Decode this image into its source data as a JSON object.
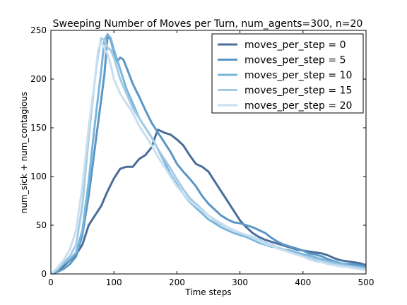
{
  "chart_data": {
    "type": "line",
    "title": "Sweeping Number of Moves per Turn, num_agents=300, n=20",
    "xlabel": "Time steps",
    "ylabel": "num_sick + num_contagious",
    "xlim": [
      0,
      500
    ],
    "ylim": [
      0,
      250
    ],
    "x_ticks": [
      "0",
      "100",
      "200",
      "300",
      "400",
      "500"
    ],
    "y_ticks": [
      "0",
      "50",
      "100",
      "150",
      "200",
      "250"
    ],
    "grid": false,
    "legend_position": "top-right",
    "series": [
      {
        "name": "moves_per_step = 0",
        "color": "#4a6d99",
        "points": [
          [
            0,
            0
          ],
          [
            10,
            3
          ],
          [
            20,
            8
          ],
          [
            30,
            14
          ],
          [
            40,
            20
          ],
          [
            50,
            30
          ],
          [
            60,
            50
          ],
          [
            70,
            60
          ],
          [
            80,
            70
          ],
          [
            90,
            85
          ],
          [
            100,
            98
          ],
          [
            110,
            108
          ],
          [
            120,
            110
          ],
          [
            130,
            110
          ],
          [
            140,
            118
          ],
          [
            150,
            122
          ],
          [
            160,
            130
          ],
          [
            165,
            140
          ],
          [
            170,
            148
          ],
          [
            180,
            145
          ],
          [
            190,
            143
          ],
          [
            200,
            138
          ],
          [
            210,
            132
          ],
          [
            220,
            122
          ],
          [
            230,
            113
          ],
          [
            240,
            110
          ],
          [
            250,
            105
          ],
          [
            260,
            95
          ],
          [
            270,
            85
          ],
          [
            280,
            75
          ],
          [
            290,
            65
          ],
          [
            300,
            55
          ],
          [
            310,
            48
          ],
          [
            320,
            42
          ],
          [
            330,
            38
          ],
          [
            340,
            35
          ],
          [
            350,
            33
          ],
          [
            360,
            31
          ],
          [
            370,
            29
          ],
          [
            380,
            27
          ],
          [
            390,
            25
          ],
          [
            400,
            24
          ],
          [
            410,
            23
          ],
          [
            420,
            22
          ],
          [
            430,
            21
          ],
          [
            440,
            19
          ],
          [
            450,
            16
          ],
          [
            460,
            14
          ],
          [
            470,
            13
          ],
          [
            480,
            12
          ],
          [
            490,
            11
          ],
          [
            500,
            9
          ]
        ]
      },
      {
        "name": "moves_per_step = 5",
        "color": "#5b96c6",
        "points": [
          [
            0,
            0
          ],
          [
            10,
            2
          ],
          [
            20,
            5
          ],
          [
            30,
            10
          ],
          [
            40,
            18
          ],
          [
            50,
            40
          ],
          [
            60,
            80
          ],
          [
            70,
            130
          ],
          [
            80,
            180
          ],
          [
            85,
            205
          ],
          [
            90,
            245
          ],
          [
            95,
            240
          ],
          [
            100,
            228
          ],
          [
            105,
            218
          ],
          [
            110,
            222
          ],
          [
            115,
            220
          ],
          [
            120,
            212
          ],
          [
            130,
            195
          ],
          [
            140,
            182
          ],
          [
            150,
            168
          ],
          [
            160,
            155
          ],
          [
            170,
            145
          ],
          [
            180,
            135
          ],
          [
            190,
            125
          ],
          [
            200,
            113
          ],
          [
            210,
            105
          ],
          [
            220,
            98
          ],
          [
            230,
            90
          ],
          [
            240,
            80
          ],
          [
            250,
            72
          ],
          [
            260,
            66
          ],
          [
            270,
            60
          ],
          [
            280,
            56
          ],
          [
            290,
            53
          ],
          [
            300,
            52
          ],
          [
            310,
            50
          ],
          [
            320,
            48
          ],
          [
            330,
            45
          ],
          [
            340,
            42
          ],
          [
            350,
            37
          ],
          [
            360,
            33
          ],
          [
            370,
            30
          ],
          [
            380,
            28
          ],
          [
            390,
            26
          ],
          [
            400,
            24
          ],
          [
            410,
            21
          ],
          [
            420,
            20
          ],
          [
            430,
            18
          ],
          [
            440,
            15
          ],
          [
            450,
            13
          ],
          [
            460,
            11
          ],
          [
            470,
            10
          ],
          [
            480,
            10
          ],
          [
            490,
            9
          ],
          [
            500,
            8
          ]
        ]
      },
      {
        "name": "moves_per_step = 10",
        "color": "#7ab6dc",
        "points": [
          [
            0,
            0
          ],
          [
            10,
            4
          ],
          [
            20,
            10
          ],
          [
            30,
            15
          ],
          [
            40,
            22
          ],
          [
            50,
            45
          ],
          [
            60,
            95
          ],
          [
            70,
            155
          ],
          [
            80,
            210
          ],
          [
            85,
            240
          ],
          [
            90,
            246
          ],
          [
            95,
            242
          ],
          [
            100,
            230
          ],
          [
            110,
            210
          ],
          [
            120,
            190
          ],
          [
            130,
            175
          ],
          [
            140,
            160
          ],
          [
            150,
            150
          ],
          [
            160,
            140
          ],
          [
            170,
            128
          ],
          [
            180,
            115
          ],
          [
            190,
            102
          ],
          [
            200,
            92
          ],
          [
            210,
            82
          ],
          [
            220,
            74
          ],
          [
            230,
            68
          ],
          [
            240,
            62
          ],
          [
            250,
            56
          ],
          [
            260,
            52
          ],
          [
            270,
            48
          ],
          [
            280,
            45
          ],
          [
            290,
            42
          ],
          [
            300,
            40
          ],
          [
            310,
            38
          ],
          [
            320,
            35
          ],
          [
            330,
            32
          ],
          [
            340,
            30
          ],
          [
            350,
            28
          ],
          [
            360,
            27
          ],
          [
            370,
            25
          ],
          [
            380,
            24
          ],
          [
            390,
            22
          ],
          [
            400,
            20
          ],
          [
            410,
            19
          ],
          [
            420,
            17
          ],
          [
            430,
            15
          ],
          [
            440,
            13
          ],
          [
            450,
            12
          ],
          [
            460,
            11
          ],
          [
            470,
            9
          ],
          [
            480,
            8
          ],
          [
            490,
            7
          ],
          [
            500,
            6
          ]
        ]
      },
      {
        "name": "moves_per_step = 15",
        "color": "#a4cbe4",
        "points": [
          [
            0,
            0
          ],
          [
            10,
            5
          ],
          [
            20,
            12
          ],
          [
            30,
            18
          ],
          [
            40,
            30
          ],
          [
            50,
            70
          ],
          [
            60,
            140
          ],
          [
            70,
            200
          ],
          [
            75,
            225
          ],
          [
            80,
            242
          ],
          [
            85,
            240
          ],
          [
            90,
            232
          ],
          [
            95,
            230
          ],
          [
            100,
            222
          ],
          [
            110,
            200
          ],
          [
            120,
            185
          ],
          [
            130,
            170
          ],
          [
            140,
            160
          ],
          [
            150,
            150
          ],
          [
            160,
            140
          ],
          [
            170,
            128
          ],
          [
            180,
            118
          ],
          [
            190,
            108
          ],
          [
            200,
            97
          ],
          [
            210,
            87
          ],
          [
            220,
            78
          ],
          [
            230,
            72
          ],
          [
            240,
            66
          ],
          [
            250,
            60
          ],
          [
            260,
            55
          ],
          [
            270,
            51
          ],
          [
            280,
            48
          ],
          [
            290,
            45
          ],
          [
            300,
            42
          ],
          [
            310,
            40
          ],
          [
            320,
            38
          ],
          [
            330,
            35
          ],
          [
            340,
            32
          ],
          [
            350,
            30
          ],
          [
            360,
            27
          ],
          [
            370,
            25
          ],
          [
            380,
            22
          ],
          [
            390,
            20
          ],
          [
            400,
            18
          ],
          [
            410,
            17
          ],
          [
            420,
            15
          ],
          [
            430,
            13
          ],
          [
            440,
            12
          ],
          [
            450,
            10
          ],
          [
            460,
            9
          ],
          [
            470,
            8
          ],
          [
            480,
            7
          ],
          [
            490,
            6
          ],
          [
            500,
            5
          ]
        ]
      },
      {
        "name": "moves_per_step = 20",
        "color": "#c8dff0",
        "points": [
          [
            0,
            0
          ],
          [
            10,
            6
          ],
          [
            20,
            14
          ],
          [
            30,
            25
          ],
          [
            40,
            45
          ],
          [
            50,
            90
          ],
          [
            60,
            150
          ],
          [
            70,
            200
          ],
          [
            75,
            230
          ],
          [
            80,
            238
          ],
          [
            85,
            232
          ],
          [
            90,
            225
          ],
          [
            95,
            215
          ],
          [
            100,
            200
          ],
          [
            110,
            185
          ],
          [
            120,
            175
          ],
          [
            130,
            165
          ],
          [
            140,
            152
          ],
          [
            150,
            142
          ],
          [
            160,
            132
          ],
          [
            170,
            120
          ],
          [
            180,
            110
          ],
          [
            190,
            100
          ],
          [
            200,
            90
          ],
          [
            210,
            82
          ],
          [
            220,
            75
          ],
          [
            230,
            70
          ],
          [
            240,
            65
          ],
          [
            250,
            60
          ],
          [
            260,
            56
          ],
          [
            270,
            52
          ],
          [
            280,
            48
          ],
          [
            290,
            45
          ],
          [
            300,
            42
          ],
          [
            310,
            40
          ],
          [
            320,
            37
          ],
          [
            330,
            34
          ],
          [
            340,
            31
          ],
          [
            350,
            29
          ],
          [
            360,
            26
          ],
          [
            370,
            24
          ],
          [
            380,
            22
          ],
          [
            390,
            20
          ],
          [
            400,
            18
          ],
          [
            410,
            15
          ],
          [
            420,
            13
          ],
          [
            430,
            12
          ],
          [
            440,
            10
          ],
          [
            450,
            9
          ],
          [
            460,
            8
          ],
          [
            470,
            7
          ],
          [
            480,
            6
          ],
          [
            490,
            5
          ],
          [
            500,
            4
          ]
        ]
      }
    ]
  }
}
